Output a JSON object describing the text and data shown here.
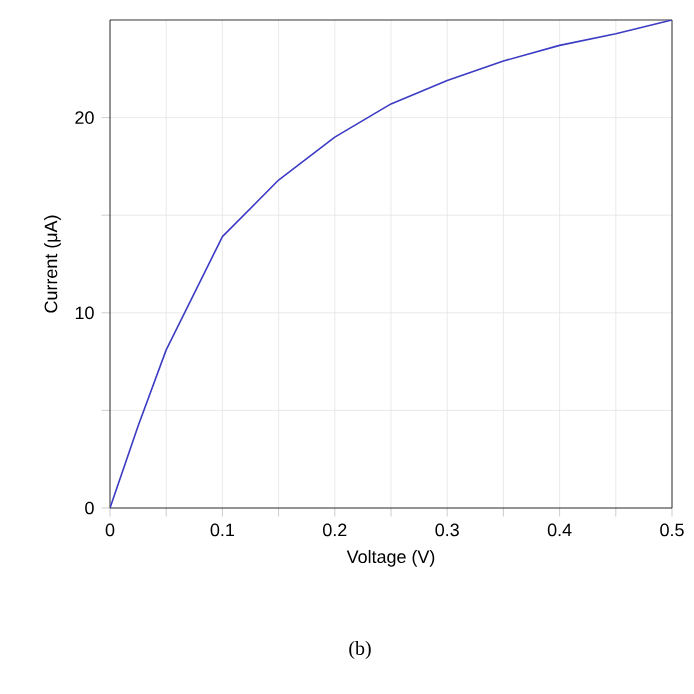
{
  "chart_data": {
    "type": "line",
    "xlabel": "Voltage (V)",
    "ylabel": "Current (μA)",
    "annotations": [
      "(b)"
    ],
    "x": [
      0,
      0.025,
      0.05,
      0.1,
      0.15,
      0.2,
      0.25,
      0.3,
      0.35,
      0.4,
      0.45,
      0.5
    ],
    "series": [
      {
        "color": "#3b3bc4",
        "values": [
          0,
          4.2,
          8.1,
          13.9,
          16.8,
          19.0,
          20.7,
          21.9,
          22.9,
          23.7,
          24.3,
          25
        ]
      }
    ],
    "xlim": [
      0,
      0.5
    ],
    "ylim": [
      0,
      25
    ],
    "xticks": [
      0,
      {
        "value": 0.05,
        "label": null
      },
      0.1,
      {
        "value": 0.15,
        "label": null
      },
      0.2,
      {
        "value": 0.25,
        "label": null
      },
      0.3,
      {
        "value": 0.35,
        "label": null
      },
      0.4,
      {
        "value": 0.45,
        "label": null
      },
      0.5
    ],
    "yticks": [
      0,
      {
        "value": 5,
        "label": null
      },
      10,
      {
        "value": 15,
        "label": null
      },
      20
    ],
    "grid": true,
    "marker": "none",
    "line_style": "solid"
  }
}
